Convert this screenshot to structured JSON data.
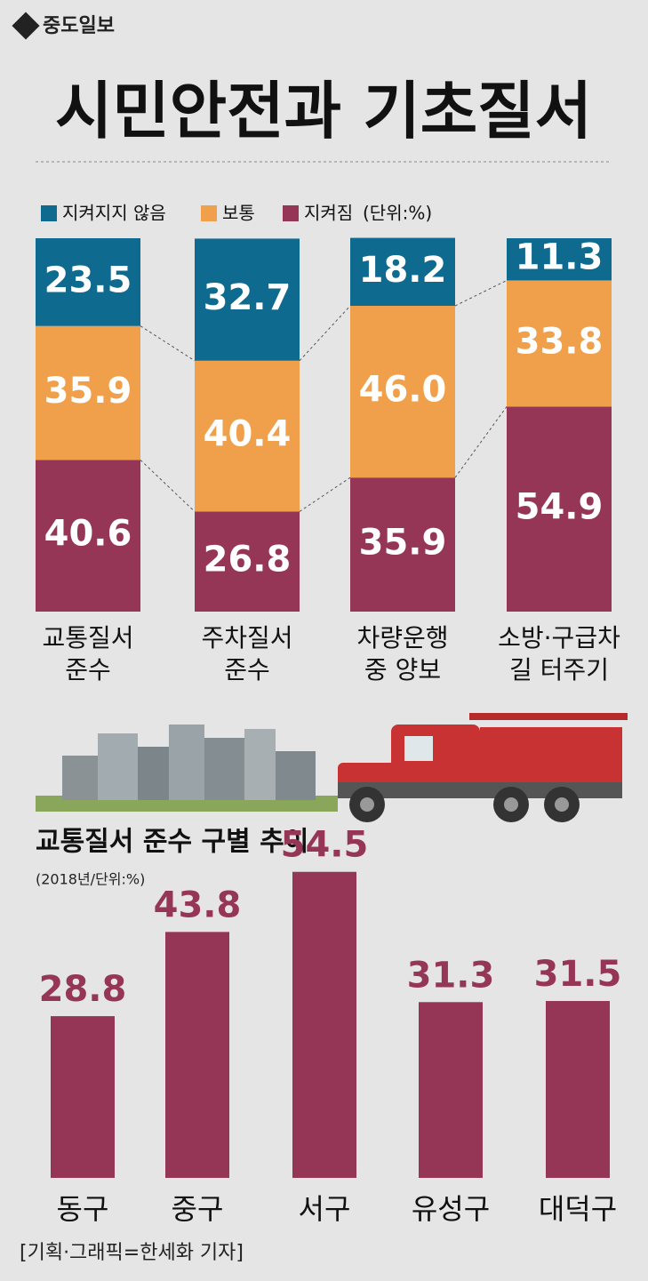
{
  "header": {
    "logo": "중도일보",
    "title": "시민안전과 기초질서"
  },
  "footer": "[기획·그래픽=한세화 기자]",
  "chart_data": [
    {
      "type": "stacked-bar",
      "unit": "(단위:%)",
      "categories": [
        "교통질서\n준수",
        "주차질서\n준수",
        "차량운행\n중 양보",
        "소방·구급차\n길 터주기"
      ],
      "series": [
        {
          "name": "지켜지지 않음",
          "color": "#0f6a8f",
          "values": [
            23.5,
            32.7,
            18.2,
            11.3
          ],
          "value_labels": [
            "23.5",
            "32.7",
            "18.2",
            "11.3"
          ]
        },
        {
          "name": "보통",
          "color": "#f0a04b",
          "values": [
            35.9,
            40.4,
            46.0,
            33.8
          ],
          "value_labels": [
            "35.9",
            "40.4",
            "46.0",
            "33.8"
          ]
        },
        {
          "name": "지켜짐",
          "color": "#963656",
          "values": [
            40.6,
            26.8,
            35.9,
            54.9
          ],
          "value_labels": [
            "40.6",
            "26.8",
            "35.9",
            "54.9"
          ]
        }
      ],
      "ylim": [
        0,
        100
      ]
    },
    {
      "type": "bar",
      "title": "교통질서 준수 구별 추이",
      "subtitle": "(2018년/단위:%)",
      "categories": [
        "동구",
        "중구",
        "서구",
        "유성구",
        "대덕구"
      ],
      "values": [
        28.8,
        43.8,
        54.5,
        31.3,
        31.5
      ],
      "color": "#963656",
      "ylim": [
        0,
        60
      ]
    }
  ]
}
